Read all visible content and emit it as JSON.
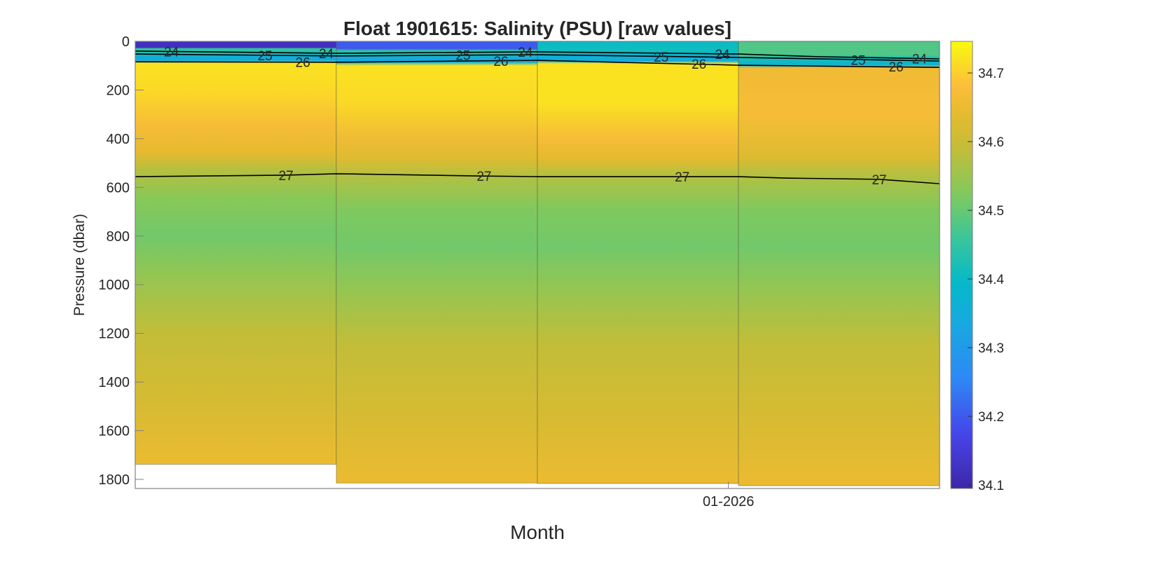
{
  "chart_data": {
    "type": "heatmap",
    "title": "Float 1901615: Salinity (PSU) [raw values]",
    "xlabel": "Month",
    "ylabel": "Pressure (dbar)",
    "ylim": [
      0,
      1837
    ],
    "y_reversed": true,
    "yticks": [
      0,
      200,
      400,
      600,
      800,
      1000,
      1200,
      1400,
      1600,
      1800
    ],
    "xtick_labels": [
      {
        "x": 2.95,
        "label": "01-2026"
      }
    ],
    "colorbar": {
      "range": [
        34.095,
        34.746
      ],
      "ticks": [
        34.1,
        34.2,
        34.3,
        34.4,
        34.5,
        34.6,
        34.7
      ],
      "colormap": "parula"
    },
    "profiles": [
      {
        "index": 0,
        "max_pressure": 1738,
        "salinity": [
          [
            0,
            34.12
          ],
          [
            25,
            34.12
          ],
          [
            30,
            34.45
          ],
          [
            45,
            34.44
          ],
          [
            60,
            34.36
          ],
          [
            78,
            34.34
          ],
          [
            90,
            34.72
          ],
          [
            200,
            34.71
          ],
          [
            350,
            34.67
          ],
          [
            460,
            34.64
          ],
          [
            520,
            34.58
          ],
          [
            650,
            34.53
          ],
          [
            800,
            34.51
          ],
          [
            950,
            34.54
          ],
          [
            1200,
            34.59
          ],
          [
            1500,
            34.62
          ],
          [
            1738,
            34.65
          ]
        ]
      },
      {
        "index": 1,
        "max_pressure": 1815,
        "salinity": [
          [
            0,
            34.2
          ],
          [
            30,
            34.2
          ],
          [
            38,
            34.45
          ],
          [
            55,
            34.42
          ],
          [
            70,
            34.33
          ],
          [
            85,
            34.35
          ],
          [
            100,
            34.72
          ],
          [
            250,
            34.71
          ],
          [
            400,
            34.66
          ],
          [
            480,
            34.63
          ],
          [
            560,
            34.57
          ],
          [
            700,
            34.52
          ],
          [
            850,
            34.51
          ],
          [
            1000,
            34.54
          ],
          [
            1250,
            34.59
          ],
          [
            1550,
            34.62
          ],
          [
            1815,
            34.65
          ]
        ]
      },
      {
        "index": 2,
        "max_pressure": 1817,
        "salinity": [
          [
            0,
            34.4
          ],
          [
            40,
            34.41
          ],
          [
            60,
            34.37
          ],
          [
            80,
            34.34
          ],
          [
            92,
            34.72
          ],
          [
            250,
            34.72
          ],
          [
            400,
            34.67
          ],
          [
            480,
            34.64
          ],
          [
            560,
            34.57
          ],
          [
            700,
            34.52
          ],
          [
            850,
            34.51
          ],
          [
            1000,
            34.54
          ],
          [
            1250,
            34.59
          ],
          [
            1550,
            34.62
          ],
          [
            1817,
            34.65
          ]
        ]
      },
      {
        "index": 3,
        "max_pressure": 1826,
        "salinity": [
          [
            0,
            34.48
          ],
          [
            55,
            34.48
          ],
          [
            70,
            34.42
          ],
          [
            95,
            34.37
          ],
          [
            110,
            34.66
          ],
          [
            300,
            34.67
          ],
          [
            470,
            34.63
          ],
          [
            560,
            34.57
          ],
          [
            700,
            34.52
          ],
          [
            850,
            34.51
          ],
          [
            1000,
            34.54
          ],
          [
            1250,
            34.59
          ],
          [
            1550,
            34.62
          ],
          [
            1826,
            34.65
          ]
        ]
      }
    ],
    "contours": [
      {
        "level": "24",
        "points": [
          [
            0,
            40
          ],
          [
            1,
            49
          ],
          [
            2,
            43
          ],
          [
            3,
            52
          ],
          [
            3.4,
            63
          ],
          [
            4,
            72
          ]
        ],
        "label_x": [
          0.18,
          0.95,
          1.94,
          2.92,
          3.9
        ]
      },
      {
        "level": "25",
        "points": [
          [
            0,
            52
          ],
          [
            1,
            60
          ],
          [
            2,
            55
          ],
          [
            3,
            66
          ],
          [
            4,
            81
          ]
        ],
        "label_x": [
          0.75,
          1.735,
          2.72,
          3.7
        ]
      },
      {
        "level": "26",
        "points": [
          [
            0,
            84
          ],
          [
            1,
            86
          ],
          [
            2,
            78
          ],
          [
            3,
            98
          ],
          [
            4,
            107
          ]
        ],
        "label_x": [
          0.75,
          1.735,
          2.72,
          3.7
        ]
      },
      {
        "level": "27",
        "points": [
          [
            0,
            556
          ],
          [
            0.75,
            550
          ],
          [
            1,
            544
          ],
          [
            1.7,
            553
          ],
          [
            2,
            556
          ],
          [
            3,
            556
          ],
          [
            3.25,
            562
          ],
          [
            3.7,
            567
          ],
          [
            4,
            585
          ]
        ],
        "label_x": [
          0.75,
          1.735,
          2.72,
          3.7
        ]
      }
    ]
  }
}
